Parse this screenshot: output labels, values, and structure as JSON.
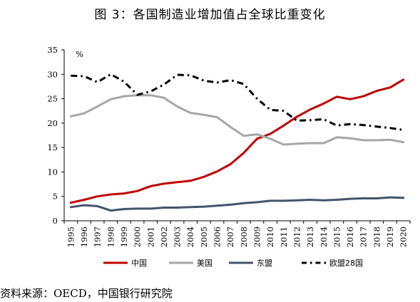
{
  "chart_data": {
    "type": "line",
    "title": "图 3：各国制造业增加值占全球比重变化",
    "ylabel": "%",
    "ylim": [
      0,
      35
    ],
    "yticks": [
      0,
      5,
      10,
      15,
      20,
      25,
      30,
      35
    ],
    "x": [
      "1995",
      "1996",
      "1997",
      "1998",
      "1999",
      "2000",
      "2001",
      "2002",
      "2003",
      "2004",
      "2005",
      "2006",
      "2007",
      "2008",
      "2009",
      "2010",
      "2011",
      "2012",
      "2013",
      "2014",
      "2015",
      "2016",
      "2017",
      "2018",
      "2019",
      "2020"
    ],
    "grid": false,
    "legend_position": "bottom",
    "series": [
      {
        "name": "中国",
        "color": "#c00000",
        "style": "solid",
        "values": [
          3.7,
          4.3,
          5.0,
          5.4,
          5.6,
          6.1,
          7.1,
          7.6,
          7.9,
          8.2,
          9.0,
          10.1,
          11.6,
          13.9,
          16.8,
          17.8,
          19.5,
          21.3,
          22.8,
          24.0,
          25.4,
          24.9,
          25.5,
          26.6,
          27.3,
          28.9
        ]
      },
      {
        "name": "美国",
        "color": "#a6a6a6",
        "style": "solid",
        "values": [
          21.4,
          22.0,
          23.4,
          24.9,
          25.5,
          25.7,
          25.7,
          25.2,
          23.4,
          22.1,
          21.7,
          21.2,
          19.2,
          17.4,
          17.7,
          16.8,
          15.6,
          15.8,
          15.9,
          15.9,
          17.1,
          16.9,
          16.5,
          16.5,
          16.6,
          16.1
        ]
      },
      {
        "name": "东盟",
        "color": "#44546a",
        "style": "solid",
        "values": [
          2.8,
          3.2,
          3.0,
          2.1,
          2.4,
          2.5,
          2.5,
          2.7,
          2.7,
          2.8,
          2.9,
          3.1,
          3.3,
          3.6,
          3.8,
          4.1,
          4.1,
          4.2,
          4.3,
          4.2,
          4.3,
          4.5,
          4.6,
          4.6,
          4.8,
          4.7
        ]
      },
      {
        "name": "欧盟28国",
        "color": "#000000",
        "style": "dashdot",
        "values": [
          29.7,
          29.6,
          28.4,
          30.0,
          28.5,
          25.8,
          26.5,
          27.9,
          29.9,
          29.8,
          28.7,
          28.3,
          28.8,
          28.0,
          25.0,
          22.7,
          22.5,
          20.5,
          20.6,
          20.8,
          19.5,
          19.8,
          19.6,
          19.3,
          19.0,
          18.6
        ]
      }
    ]
  },
  "source": "资料来源：OECD，中国银行研究院"
}
